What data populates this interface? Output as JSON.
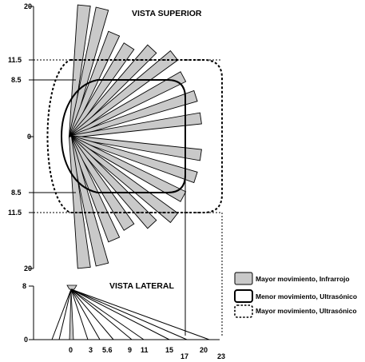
{
  "views": {
    "top_title": "VISTA SUPERIOR",
    "side_title": "VISTA LATERAL"
  },
  "top_view_axis": {
    "labels": [
      "20",
      "11.5",
      "8.5",
      "0",
      "8.5",
      "11.5",
      "20"
    ]
  },
  "side_view_axis": {
    "y_labels": [
      "8",
      "0"
    ],
    "x_labels": [
      "0",
      "3",
      "5.6",
      "9",
      "11",
      "15",
      "17",
      "20",
      "23"
    ]
  },
  "legend": [
    {
      "label": "Mayor movimiento, Infrarrojo",
      "swatch": "gray-fill"
    },
    {
      "label": "Menor movimiento, Ultrasónico",
      "swatch": "solid-outline"
    },
    {
      "label": "Mayor movimiento, Ultrasónico",
      "swatch": "dashed-outline"
    }
  ],
  "colors": {
    "ir_fill": "#c9c9c9",
    "line": "#000000",
    "background": "#ffffff"
  }
}
